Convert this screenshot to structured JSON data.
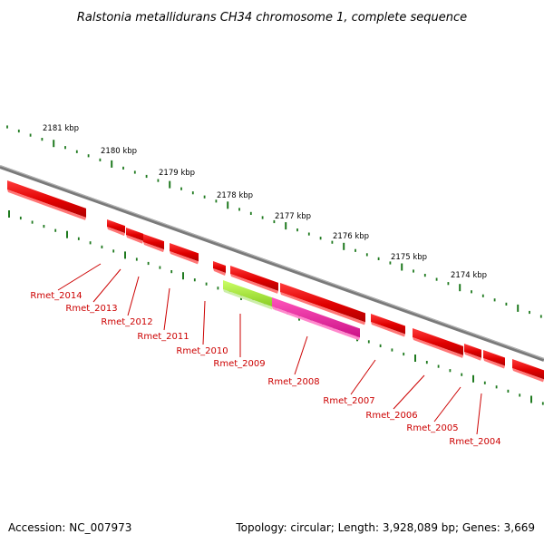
{
  "title": "Ralstonia metallidurans CH34 chromosome 1, complete sequence",
  "footer": {
    "accession": "Accession: NC_007973",
    "summary": "Topology: circular; Length: 3,928,089 bp; Genes: 3,669"
  },
  "colors": {
    "background": "#ffffff",
    "backbone": "#888888",
    "tick": "#1f7a1f",
    "gene_red": "#ff0000",
    "gene_green": "#99ee33",
    "gene_pink": "#ee2299",
    "label": "#cc0000"
  },
  "ruler": {
    "unit": "kbp",
    "labels": [
      "2181 kbp",
      "2180 kbp",
      "2179 kbp",
      "2178 kbp",
      "2177 kbp",
      "2176 kbp",
      "2175 kbp",
      "2174 kbp"
    ]
  },
  "genes": [
    {
      "label": "Rmet_2014",
      "color": "red"
    },
    {
      "label": "Rmet_2013",
      "color": "red"
    },
    {
      "label": "Rmet_2012",
      "color": "red"
    },
    {
      "label": "Rmet_2011",
      "color": "red"
    },
    {
      "label": "Rmet_2010",
      "color": "red"
    },
    {
      "label": "Rmet_2009",
      "color": "green"
    },
    {
      "label": "Rmet_2008",
      "color": "pink"
    },
    {
      "label": "Rmet_2007",
      "color": "red"
    },
    {
      "label": "Rmet_2006",
      "color": "red"
    },
    {
      "label": "Rmet_2005",
      "color": "red"
    },
    {
      "label": "Rmet_2004",
      "color": "red"
    }
  ]
}
